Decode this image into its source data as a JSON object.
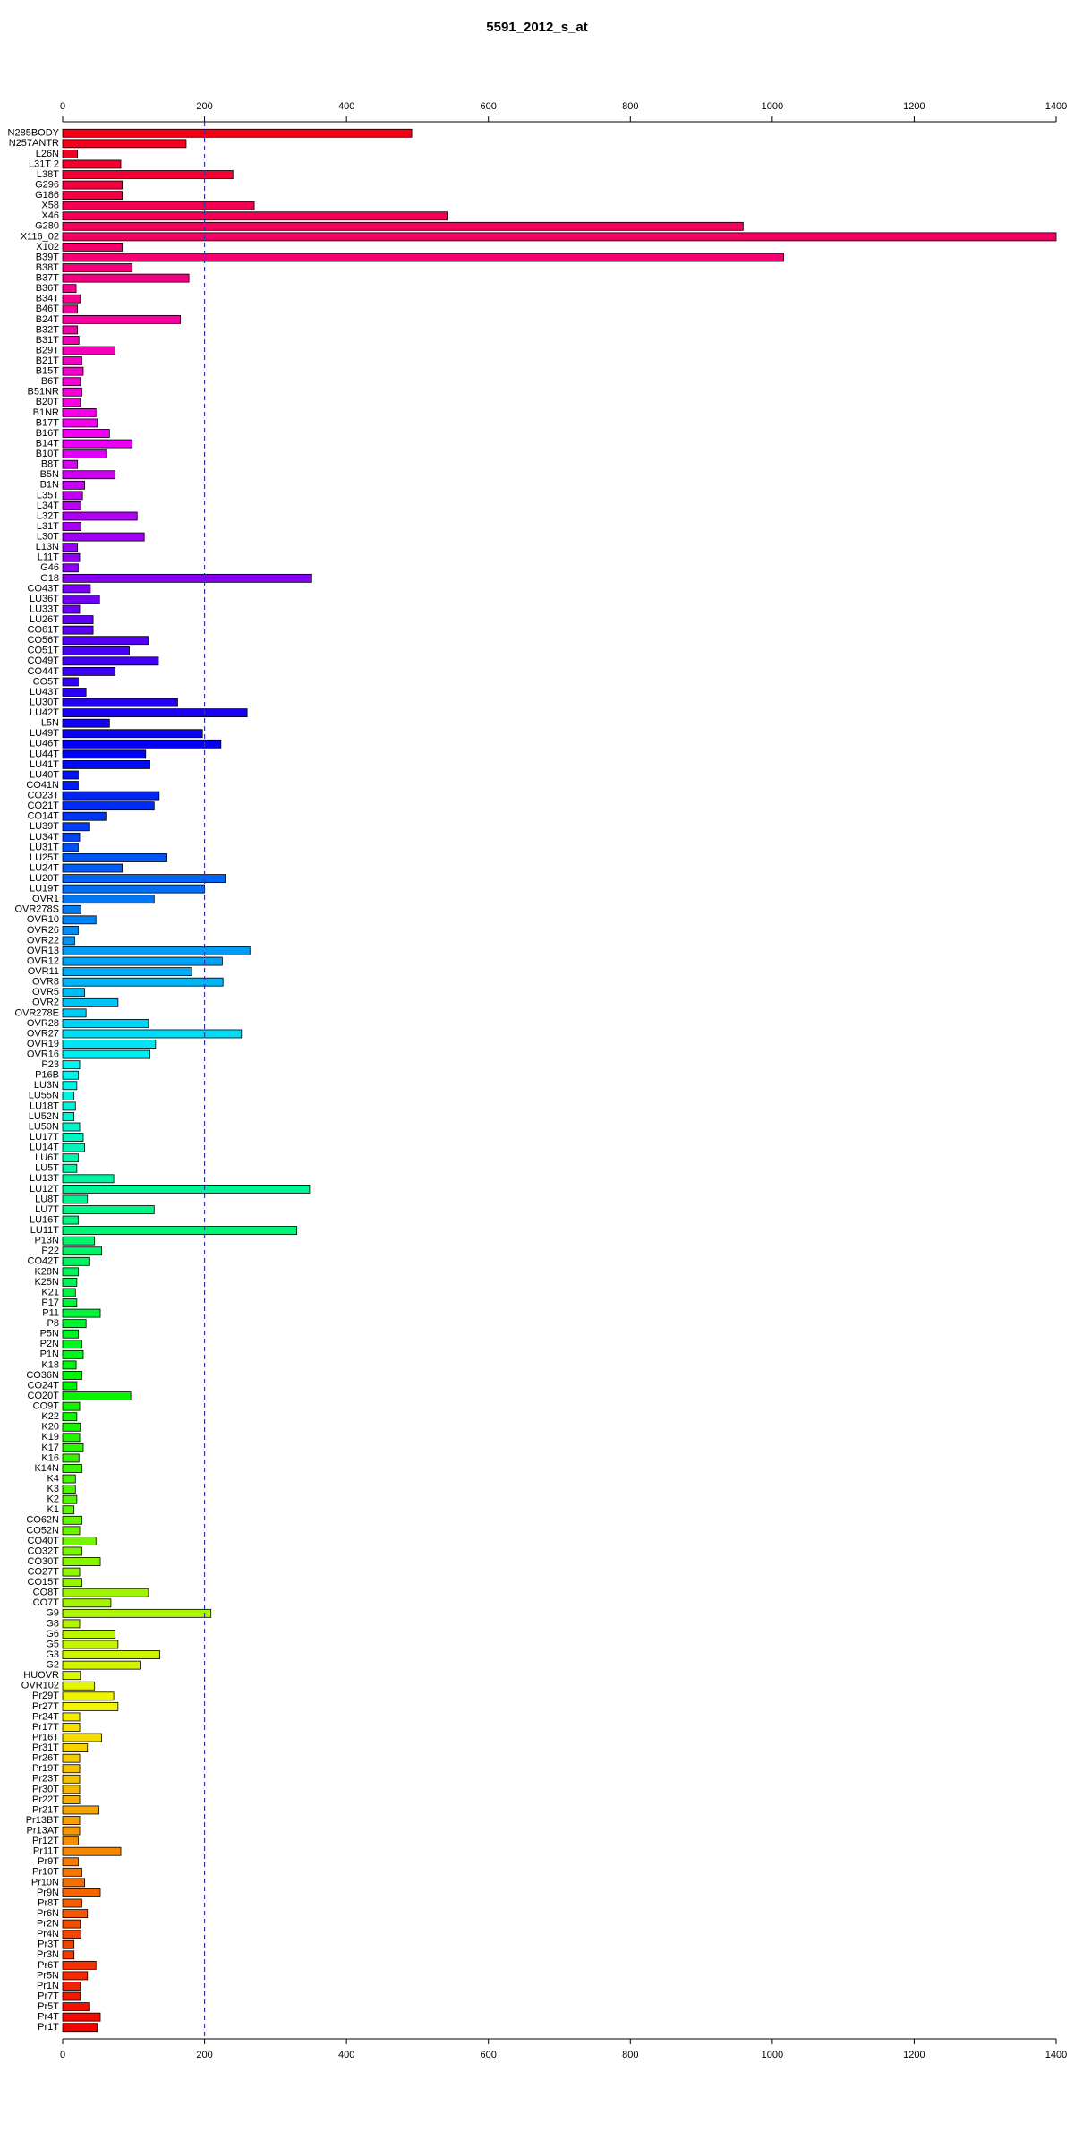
{
  "chart_data": {
    "type": "hbar",
    "title": "5591_2012_s_at",
    "categories": [
      "N285BODY",
      "N257ANTR",
      "L26N",
      "L31T 2",
      "L38T",
      "G296",
      "G186",
      "X58",
      "X46",
      "G280",
      "X116_02",
      "X102",
      "B39T",
      "B38T",
      "B37T",
      "B36T",
      "B34T",
      "B46T",
      "B24T",
      "B32T",
      "B31T",
      "B29T",
      "B21T",
      "B15T",
      "B6T",
      "B51NR",
      "B20T",
      "B1NR",
      "B17T",
      "B16T",
      "B14T",
      "B10T",
      "B8T",
      "B5N",
      "B1N",
      "L35T",
      "L34T",
      "L32T",
      "L31T",
      "L30T",
      "L13N",
      "L11T",
      "G46",
      "G18",
      "CO43T",
      "LU36T",
      "LU33T",
      "LU26T",
      "CO61T",
      "CO56T",
      "CO51T",
      "CO49T",
      "CO44T",
      "CO5T",
      "LU43T",
      "LU30T",
      "LU42T",
      "L5N",
      "LU49T",
      "LU46T",
      "LU44T",
      "LU41T",
      "LU40T",
      "CO41N",
      "CO23T",
      "CO21T",
      "CO14T",
      "LU39T",
      "LU34T",
      "LU31T",
      "LU25T",
      "LU24T",
      "LU20T",
      "LU19T",
      "OVR1",
      "OVR278S",
      "OVR10",
      "OVR26",
      "OVR22",
      "OVR13",
      "OVR12",
      "OVR11",
      "OVR8",
      "OVR5",
      "OVR2",
      "OVR278E",
      "OVR28",
      "OVR27",
      "OVR19",
      "OVR16",
      "P23",
      "P16B",
      "LU3N",
      "LU55N",
      "LU18T",
      "LU52N",
      "LU50N",
      "LU17T",
      "LU14T",
      "LU6T",
      "LU5T",
      "LU13T",
      "LU12T",
      "LU8T",
      "LU7T",
      "LU16T",
      "LU11T",
      "P13N",
      "P22",
      "CO42T",
      "K28N",
      "K25N",
      "K21",
      "P17",
      "P11",
      "P8",
      "P5N",
      "P2N",
      "P1N",
      "K18",
      "CO36N",
      "CO24T",
      "CO20T",
      "CO9T",
      "K22",
      "K20",
      "K19",
      "K17",
      "K16",
      "K14N",
      "K4",
      "K3",
      "K2",
      "K1",
      "CO62N",
      "CO52N",
      "CO40T",
      "CO32T",
      "CO30T",
      "CO27T",
      "CO15T",
      "CO8T",
      "CO7T",
      "G9",
      "G8",
      "G6",
      "G5",
      "G3",
      "G2",
      "HUOVR",
      "OVR102",
      "Pr29T",
      "Pr27T",
      "Pr24T",
      "Pr17T",
      "Pr16T",
      "Pr31T",
      "Pr26T",
      "Pr19T",
      "Pr23T",
      "Pr30T",
      "Pr22T",
      "Pr21T",
      "Pr13BT",
      "Pr13AT",
      "Pr12T",
      "Pr11T",
      "Pr9T",
      "Pr10T",
      "Pr10N",
      "Pr9N",
      "Pr8T",
      "Pr6N",
      "Pr2N",
      "Pr4N",
      "Pr3T",
      "Pr3N",
      "Pr6T",
      "Pr5N",
      "Pr1N",
      "Pr7T",
      "Pr5T",
      "Pr4T",
      "Pr1T"
    ],
    "values": [
      492,
      174,
      21,
      82,
      240,
      84,
      84,
      270,
      543,
      959,
      1400,
      84,
      1016,
      98,
      178,
      19,
      25,
      21,
      166,
      21,
      23,
      74,
      27,
      29,
      25,
      27,
      25,
      47,
      49,
      66,
      98,
      62,
      21,
      74,
      31,
      28,
      26,
      105,
      26,
      115,
      21,
      24,
      22,
      351,
      39,
      52,
      24,
      43,
      43,
      121,
      94,
      135,
      74,
      22,
      33,
      162,
      260,
      66,
      197,
      223,
      117,
      123,
      22,
      22,
      136,
      129,
      61,
      37,
      24,
      22,
      147,
      84,
      229,
      200,
      129,
      26,
      47,
      22,
      17,
      264,
      225,
      182,
      226,
      31,
      78,
      33,
      121,
      252,
      131,
      123,
      24,
      22,
      20,
      16,
      18,
      16,
      24,
      29,
      31,
      22,
      20,
      72,
      348,
      35,
      129,
      22,
      330,
      45,
      55,
      37,
      22,
      20,
      18,
      20,
      53,
      33,
      22,
      27,
      29,
      19,
      27,
      20,
      96,
      24,
      20,
      25,
      24,
      29,
      23,
      27,
      18,
      18,
      20,
      16,
      27,
      24,
      47,
      27,
      53,
      24,
      27,
      121,
      68,
      209,
      24,
      74,
      78,
      137,
      109,
      25,
      45,
      72,
      78,
      24,
      24,
      55,
      35,
      24,
      24,
      24,
      24,
      24,
      51,
      24,
      24,
      22,
      82,
      22,
      27,
      31,
      53,
      27,
      35,
      25,
      26,
      16,
      16,
      47,
      35,
      25,
      25,
      37,
      53,
      49
    ],
    "colors": [
      "hsl(355,100%,48%)",
      "hsl(353,100%,48%)",
      "hsl(351,100%,48%)",
      "hsl(349,100%,48%)",
      "hsl(347,100%,48%)",
      "hsl(345,100%,48%)",
      "hsl(343,100%,48%)",
      "hsl(341,100%,48%)",
      "hsl(339,100%,48%)",
      "hsl(338,100%,48%)",
      "hsl(336,100%,48%)",
      "hsl(334,100%,48%)",
      "hsl(332,100%,48%)",
      "hsl(330,100%,48%)",
      "hsl(328,100%,48%)",
      "hsl(326,100%,48%)",
      "hsl(324,100%,48%)",
      "hsl(322,100%,48%)",
      "hsl(320,100%,48%)",
      "hsl(318,100%,48%)",
      "hsl(316,100%,48%)",
      "hsl(314,100%,48%)",
      "hsl(312,100%,48%)",
      "hsl(310,100%,48%)",
      "hsl(308,100%,48%)",
      "hsl(307,100%,48%)",
      "hsl(305,100%,48%)",
      "hsl(303,100%,48%)",
      "hsl(301,100%,48%)",
      "hsl(299,100%,48%)",
      "hsl(297,100%,48%)",
      "hsl(295,100%,48%)",
      "hsl(293,100%,48%)",
      "hsl(291,100%,48%)",
      "hsl(289,100%,48%)",
      "hsl(287,100%,48%)",
      "hsl(285,100%,48%)",
      "hsl(283,100%,48%)",
      "hsl(281,100%,48%)",
      "hsl(279,100%,48%)",
      "hsl(277,100%,48%)",
      "hsl(275,100%,48%)",
      "hsl(274,100%,48%)",
      "hsl(272,100%,48%)",
      "hsl(270,100%,48%)",
      "hsl(268,100%,48%)",
      "hsl(266,100%,48%)",
      "hsl(264,100%,48%)",
      "hsl(262,100%,48%)",
      "hsl(260,100%,48%)",
      "hsl(258,100%,48%)",
      "hsl(256,100%,48%)",
      "hsl(254,100%,48%)",
      "hsl(252,100%,48%)",
      "hsl(250,100%,48%)",
      "hsl(248,100%,48%)",
      "hsl(246,100%,48%)",
      "hsl(244,100%,48%)",
      "hsl(243,100%,48%)",
      "hsl(241,100%,48%)",
      "hsl(239,100%,48%)",
      "hsl(237,100%,48%)",
      "hsl(235,100%,48%)",
      "hsl(233,100%,48%)",
      "hsl(231,100%,48%)",
      "hsl(229,100%,48%)",
      "hsl(227,100%,48%)",
      "hsl(225,100%,48%)",
      "hsl(223,100%,48%)",
      "hsl(221,100%,48%)",
      "hsl(219,100%,48%)",
      "hsl(217,100%,48%)",
      "hsl(215,100%,48%)",
      "hsl(213,100%,48%)",
      "hsl(211,100%,48%)",
      "hsl(210,100%,48%)",
      "hsl(208,100%,48%)",
      "hsl(206,100%,48%)",
      "hsl(204,100%,48%)",
      "hsl(202,100%,48%)",
      "hsl(200,100%,48%)",
      "hsl(198,100%,48%)",
      "hsl(196,100%,48%)",
      "hsl(194,100%,48%)",
      "hsl(192,100%,48%)",
      "hsl(190,100%,48%)",
      "hsl(188,100%,48%)",
      "hsl(186,100%,48%)",
      "hsl(184,100%,48%)",
      "hsl(182,100%,48%)",
      "hsl(180,100%,48%)",
      "hsl(178,100%,48%)",
      "hsl(177,100%,48%)",
      "hsl(175,100%,48%)",
      "hsl(173,100%,48%)",
      "hsl(171,100%,48%)",
      "hsl(169,100%,48%)",
      "hsl(167,100%,48%)",
      "hsl(165,100%,48%)",
      "hsl(163,100%,48%)",
      "hsl(161,100%,48%)",
      "hsl(159,100%,48%)",
      "hsl(157,100%,48%)",
      "hsl(155,100%,48%)",
      "hsl(153,100%,48%)",
      "hsl(151,100%,48%)",
      "hsl(149,100%,48%)",
      "hsl(147,100%,48%)",
      "hsl(146,100%,48%)",
      "hsl(144,100%,48%)",
      "hsl(142,100%,48%)",
      "hsl(140,100%,48%)",
      "hsl(138,100%,48%)",
      "hsl(136,100%,48%)",
      "hsl(134,100%,48%)",
      "hsl(132,100%,48%)",
      "hsl(130,100%,48%)",
      "hsl(128,100%,48%)",
      "hsl(126,100%,48%)",
      "hsl(124,100%,48%)",
      "hsl(122,100%,48%)",
      "hsl(120,100%,48%)",
      "hsl(118,100%,48%)",
      "hsl(116,100%,48%)",
      "hsl(115,100%,48%)",
      "hsl(113,100%,48%)",
      "hsl(111,100%,48%)",
      "hsl(109,100%,48%)",
      "hsl(107,100%,48%)",
      "hsl(105,100%,48%)",
      "hsl(103,100%,48%)",
      "hsl(101,100%,48%)",
      "hsl(99,100%,48%)",
      "hsl(97,100%,48%)",
      "hsl(95,100%,48%)",
      "hsl(93,100%,48%)",
      "hsl(91,100%,48%)",
      "hsl(89,100%,48%)",
      "hsl(87,100%,48%)",
      "hsl(85,100%,48%)",
      "hsl(83,100%,48%)",
      "hsl(81,100%,48%)",
      "hsl(80,100%,48%)",
      "hsl(78,100%,48%)",
      "hsl(76,100%,48%)",
      "hsl(74,100%,48%)",
      "hsl(72,100%,48%)",
      "hsl(70,100%,48%)",
      "hsl(68,100%,48%)",
      "hsl(66,100%,48%)",
      "hsl(64,100%,48%)",
      "hsl(62,100%,48%)",
      "hsl(60,100%,48%)",
      "hsl(58,100%,48%)",
      "hsl(56,100%,48%)",
      "hsl(54,100%,48%)",
      "hsl(52,100%,48%)",
      "hsl(50,100%,48%)",
      "hsl(48,100%,48%)",
      "hsl(47,100%,48%)",
      "hsl(45,100%,48%)",
      "hsl(43,100%,48%)",
      "hsl(41,100%,48%)",
      "hsl(39,100%,48%)",
      "hsl(37,100%,48%)",
      "hsl(35,100%,48%)",
      "hsl(33,100%,48%)",
      "hsl(31,100%,48%)",
      "hsl(29,100%,48%)",
      "hsl(27,100%,48%)",
      "hsl(25,100%,48%)",
      "hsl(23,100%,48%)",
      "hsl(21,100%,48%)",
      "hsl(19,100%,48%)",
      "hsl(17,100%,48%)",
      "hsl(16,100%,48%)",
      "hsl(14,100%,48%)",
      "hsl(12,100%,48%)",
      "hsl(10,100%,48%)",
      "hsl(8,100%,48%)",
      "hsl(6,100%,48%)",
      "hsl(4,100%,48%)",
      "hsl(2,100%,48%)",
      "hsl(0,100%,48%)"
    ],
    "xlim": [
      0,
      1400
    ],
    "xticks": [
      0,
      200,
      400,
      600,
      800,
      1000,
      1200,
      1400
    ],
    "reference_line": 200,
    "reference_line_color": "#3333aa"
  }
}
